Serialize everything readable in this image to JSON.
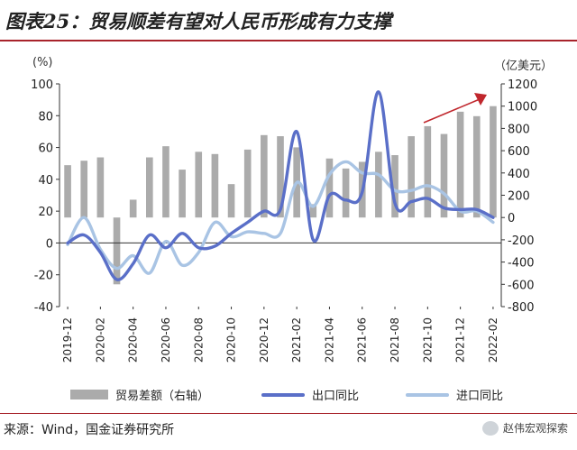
{
  "title": "图表25：贸易顺差有望对人民币形成有力支撑",
  "left_unit": "(%)",
  "right_unit": "（亿美元）",
  "source": "来源：Wind，国金证券研究所",
  "watermark": "赵伟宏观探索",
  "legend": {
    "trade_balance": "贸易差额（右轴）",
    "export_yoy": "出口同比",
    "import_yoy": "进口同比"
  },
  "colors": {
    "bar": "#ababab",
    "export": "#5a6fc8",
    "import": "#a9c4e4",
    "arrow": "#c0272d",
    "title_rule": "#a8232b"
  },
  "chart_data": {
    "type": "bar+line",
    "x_tick_labels": [
      "2019-12",
      "2020-02",
      "2020-04",
      "2020-06",
      "2020-08",
      "2020-10",
      "2020-12",
      "2021-02",
      "2021-04",
      "2021-06",
      "2021-08",
      "2021-10",
      "2021-12",
      "2022-02"
    ],
    "categories": [
      "2019-12",
      "2020-01",
      "2020-02",
      "2020-03",
      "2020-04",
      "2020-05",
      "2020-06",
      "2020-07",
      "2020-08",
      "2020-09",
      "2020-10",
      "2020-11",
      "2020-12",
      "2021-01",
      "2021-02",
      "2021-03",
      "2021-04",
      "2021-05",
      "2021-06",
      "2021-07",
      "2021-08",
      "2021-09",
      "2021-10",
      "2021-11",
      "2021-12",
      "2022-01",
      "2022-02"
    ],
    "y_left": {
      "ticks": [
        -40,
        -20,
        0,
        20,
        40,
        60,
        80,
        100
      ],
      "ylim": [
        -40,
        100
      ]
    },
    "y_right": {
      "ticks": [
        -800,
        -600,
        -400,
        -200,
        0,
        200,
        400,
        600,
        800,
        1000,
        1200
      ],
      "ylim": [
        -800,
        1200
      ]
    },
    "series": [
      {
        "name": "贸易差额（右轴）",
        "type": "bar",
        "axis": "right",
        "values": [
          470,
          510,
          540,
          -600,
          160,
          540,
          640,
          430,
          590,
          570,
          300,
          610,
          740,
          730,
          630,
          120,
          530,
          440,
          500,
          590,
          560,
          730,
          820,
          750,
          950,
          910,
          1000
        ]
      },
      {
        "name": "出口同比",
        "type": "line",
        "axis": "left",
        "values": [
          0,
          5,
          -6,
          -23,
          -13,
          5,
          -3,
          6,
          -3,
          -2,
          6,
          13,
          20,
          21,
          70,
          2,
          30,
          27,
          32,
          95,
          25,
          26,
          28,
          22,
          21,
          21,
          16
        ]
      },
      {
        "name": "进口同比",
        "type": "line",
        "axis": "left",
        "values": [
          -1,
          16,
          -4,
          -16,
          -8,
          -19,
          1,
          -14,
          -6,
          13,
          4,
          7,
          6,
          6,
          38,
          23,
          43,
          51,
          44,
          43,
          33,
          33,
          36,
          31,
          20,
          20,
          13
        ]
      }
    ]
  }
}
